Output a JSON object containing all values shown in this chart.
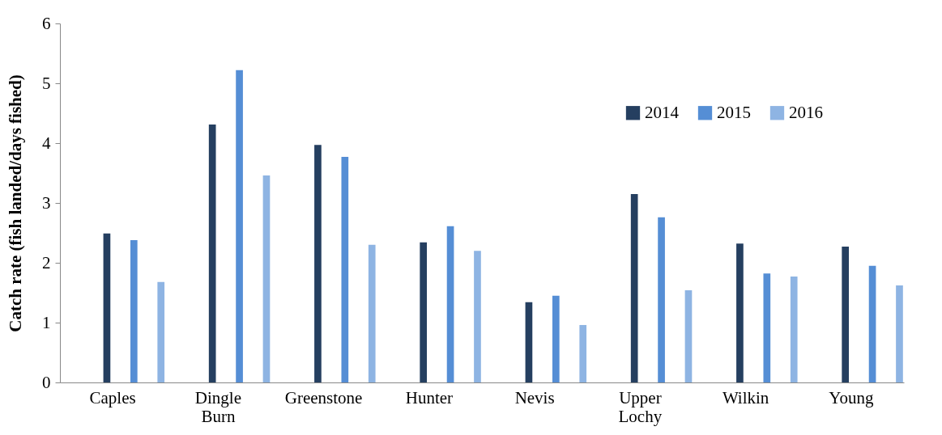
{
  "chart_data": {
    "type": "bar",
    "ylabel": "Catch  rate (fish landed/days fished)",
    "categories": [
      "Caples",
      "Dingle Burn",
      "Greenstone",
      "Hunter",
      "Nevis",
      "Upper Lochy",
      "Wilkin",
      "Young"
    ],
    "series": [
      {
        "name": "2014",
        "color": "#253f60",
        "values": [
          2.49,
          4.31,
          3.97,
          2.34,
          1.34,
          3.15,
          2.32,
          2.27
        ]
      },
      {
        "name": "2015",
        "color": "#558ed5",
        "values": [
          2.38,
          5.22,
          3.77,
          2.61,
          1.45,
          2.76,
          1.82,
          1.95
        ]
      },
      {
        "name": "2016",
        "color": "#8eb4e3",
        "values": [
          1.68,
          3.46,
          2.3,
          2.2,
          0.96,
          1.54,
          1.77,
          1.62
        ]
      }
    ],
    "ylim": [
      0,
      6
    ],
    "yticks": [
      0,
      1,
      2,
      3,
      4,
      5,
      6
    ],
    "grid": false,
    "legend": "top right"
  }
}
